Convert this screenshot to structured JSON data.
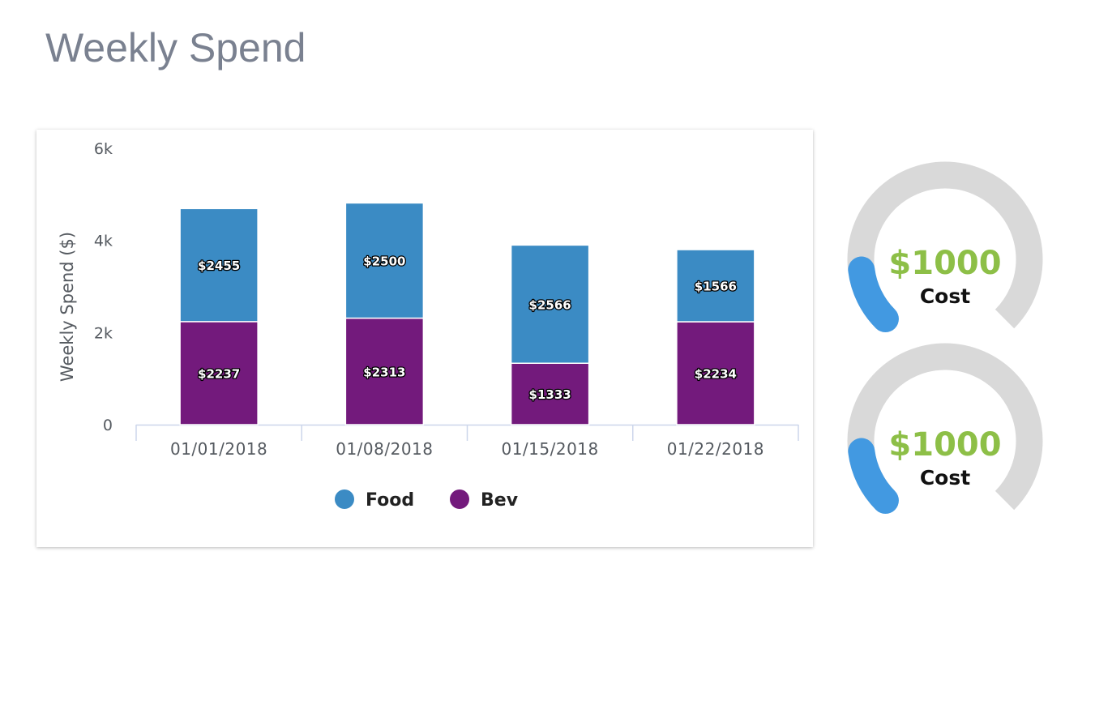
{
  "page": {
    "title": "Weekly Spend"
  },
  "chart_data": {
    "type": "bar",
    "stacked": true,
    "categories": [
      "01/01/2018",
      "01/08/2018",
      "01/15/2018",
      "01/22/2018"
    ],
    "series": [
      {
        "name": "Bev",
        "color": "#731a7c",
        "values": [
          2237,
          2313,
          1333,
          2234
        ],
        "labels": [
          "$2237",
          "$2313",
          "$1333",
          "$2234"
        ]
      },
      {
        "name": "Food",
        "color": "#3b8bc4",
        "values": [
          2455,
          2500,
          2566,
          1566
        ],
        "labels": [
          "$2455",
          "$2500",
          "$2566",
          "$1566"
        ]
      }
    ],
    "legend_order": [
      "Food",
      "Bev"
    ],
    "ylabel": "Weekly Spend ($)",
    "ylim": [
      0,
      6000
    ],
    "yticks": [
      0,
      2000,
      4000,
      6000
    ],
    "ytick_labels": [
      "0",
      "2k",
      "4k",
      "6k"
    ],
    "grid": false,
    "legend_position": "bottom"
  },
  "gauges": [
    {
      "value": "$1000",
      "label": "Cost",
      "fill_fraction": 0.14,
      "track_color": "#d9d9d9",
      "fill_color": "#4299e1",
      "value_color": "#8dbf47"
    },
    {
      "value": "$1000",
      "label": "Cost",
      "fill_fraction": 0.14,
      "track_color": "#d9d9d9",
      "fill_color": "#4299e1",
      "value_color": "#8dbf47"
    }
  ]
}
